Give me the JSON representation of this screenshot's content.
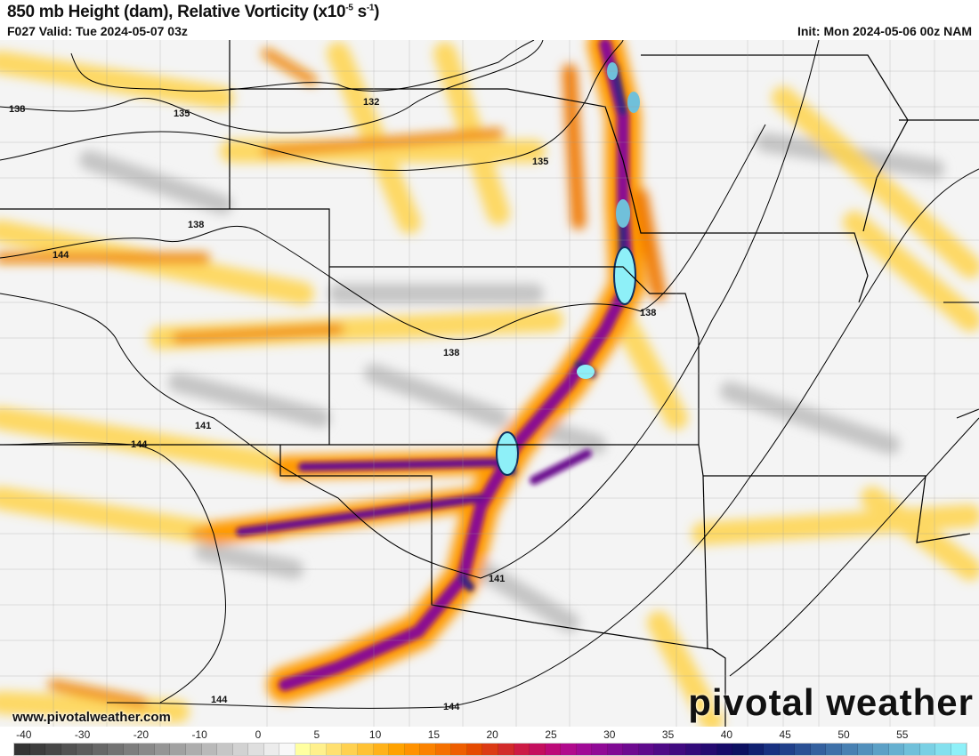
{
  "header": {
    "title_main": "850 mb Height (dam), Relative Vorticity (x10",
    "title_exp1": "-5",
    "title_unit": " s",
    "title_exp2": "-1",
    "title_close": ")",
    "valid": "F027 Valid: Tue 2024-05-07 03z",
    "init": "Init: Mon 2024-05-06 00z NAM"
  },
  "map": {
    "contour_labels": [
      "138",
      "135",
      "132",
      "135",
      "138",
      "144",
      "138",
      "138",
      "141",
      "144",
      "141",
      "144",
      "144"
    ]
  },
  "footer": {
    "url": "www.pivotalweather.com",
    "logo": "pivotal weather"
  },
  "colorbar": {
    "ticks": [
      "-40",
      "-30",
      "-20",
      "-10",
      "0",
      "5",
      "10",
      "15",
      "20",
      "25",
      "30",
      "35",
      "40",
      "45",
      "50",
      "55"
    ],
    "colors": [
      "#333333",
      "#3d3d3d",
      "#474747",
      "#525252",
      "#5c5c5c",
      "#676767",
      "#727272",
      "#7d7d7d",
      "#898989",
      "#959595",
      "#a1a1a1",
      "#adadad",
      "#b9b9b9",
      "#c6c6c6",
      "#d2d2d2",
      "#dfdfdf",
      "#ececec",
      "#f8f8f8",
      "#ffffa0",
      "#fff08c",
      "#ffe070",
      "#ffd150",
      "#ffc234",
      "#ffb21a",
      "#ffa200",
      "#ff9200",
      "#fb8200",
      "#f57000",
      "#ee5e00",
      "#e54a00",
      "#db3a14",
      "#d22a2a",
      "#cc1a44",
      "#c40f5e",
      "#bc0a78",
      "#b00a8c",
      "#a00a96",
      "#900a96",
      "#800a94",
      "#6e0a90",
      "#5e0a8c",
      "#4e0a86",
      "#400a80",
      "#320a7a",
      "#240a70",
      "#160a68",
      "#0c1060",
      "#102070",
      "#183080",
      "#20408a",
      "#2a5094",
      "#34609e",
      "#3e70a8",
      "#4880b2",
      "#5290bc",
      "#5ca0c6",
      "#66b0d0",
      "#70c0da",
      "#7ad0e4",
      "#84e0ee",
      "#8ef0f8"
    ]
  }
}
